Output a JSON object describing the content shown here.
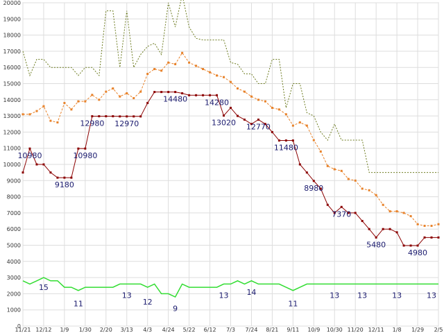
{
  "chart_data": {
    "type": "line",
    "ylim": [
      0,
      20000
    ],
    "yticks": [
      0,
      1000,
      2000,
      3000,
      4000,
      5000,
      6000,
      7000,
      8000,
      9000,
      10000,
      11000,
      12000,
      13000,
      14000,
      15000,
      16000,
      17000,
      18000,
      19000,
      20000
    ],
    "xlim": [
      0,
      90
    ],
    "xticks": [
      {
        "label": "11/21",
        "x": 0
      },
      {
        "label": "12/12",
        "x": 4.5
      },
      {
        "label": "1/9",
        "x": 9
      },
      {
        "label": "1/30",
        "x": 13.5
      },
      {
        "label": "2/20",
        "x": 18
      },
      {
        "label": "3/13",
        "x": 22.5
      },
      {
        "label": "4/3",
        "x": 27
      },
      {
        "label": "4/24",
        "x": 31.5
      },
      {
        "label": "5/22",
        "x": 36
      },
      {
        "label": "6/12",
        "x": 40.5
      },
      {
        "label": "7/3",
        "x": 45
      },
      {
        "label": "7/24",
        "x": 49.5
      },
      {
        "label": "8/21",
        "x": 54
      },
      {
        "label": "9/11",
        "x": 58.5
      },
      {
        "label": "10/9",
        "x": 63
      },
      {
        "label": "10/30",
        "x": 67.5
      },
      {
        "label": "11/20",
        "x": 72
      },
      {
        "label": "12/11",
        "x": 76.5
      },
      {
        "label": "1/8",
        "x": 81
      },
      {
        "label": "1/29",
        "x": 85.5
      },
      {
        "label": "2/5",
        "x": 90
      }
    ],
    "grid": true,
    "series": [
      {
        "color": "#8b0000",
        "style": "solid-square-markers",
        "x": [
          0,
          1.5,
          3,
          4.5,
          6,
          7.5,
          9,
          10.5,
          12,
          13.5,
          15,
          16.5,
          18,
          19.5,
          21,
          22.5,
          24,
          25.5,
          27,
          28.5,
          30,
          31.5,
          33,
          34.5,
          36,
          37.5,
          39,
          40.5,
          42,
          43.5,
          45,
          46.5,
          48,
          49.5,
          51,
          52.5,
          54,
          55.5,
          57,
          58.5,
          60,
          61.5,
          63,
          64.5,
          66,
          67.5,
          69,
          70.5,
          72,
          73.5,
          75,
          76.5,
          78,
          79.5,
          81,
          82.5,
          84,
          85.5,
          87,
          88.5,
          90
        ],
        "values": [
          9500,
          10980,
          10000,
          10000,
          9500,
          9180,
          9180,
          9180,
          10980,
          10980,
          12980,
          12980,
          12980,
          12980,
          12970,
          12970,
          12970,
          12970,
          13800,
          14480,
          14480,
          14480,
          14480,
          14400,
          14280,
          14280,
          14280,
          14280,
          14280,
          13020,
          13500,
          13000,
          12770,
          12500,
          12770,
          12500,
          12000,
          11480,
          11480,
          11480,
          10000,
          9500,
          8980,
          8500,
          7500,
          7000,
          7370,
          7000,
          7000,
          6500,
          6000,
          5480,
          6000,
          6000,
          5800,
          4980,
          4980,
          4980,
          5480,
          5480,
          5480
        ]
      },
      {
        "color": "#e8822a",
        "style": "dashed-square-markers",
        "x": [
          0,
          1.5,
          3,
          4.5,
          6,
          7.5,
          9,
          10.5,
          12,
          13.5,
          15,
          16.5,
          18,
          19.5,
          21,
          22.5,
          24,
          25.5,
          27,
          28.5,
          30,
          31.5,
          33,
          34.5,
          36,
          37.5,
          39,
          40.5,
          42,
          43.5,
          45,
          46.5,
          48,
          49.5,
          51,
          52.5,
          54,
          55.5,
          57,
          58.5,
          60,
          61.5,
          63,
          64.5,
          66,
          67.5,
          69,
          70.5,
          72,
          73.5,
          75,
          76.5,
          78,
          79.5,
          81,
          82.5,
          84,
          85.5,
          87,
          88.5,
          90
        ],
        "values": [
          13100,
          13100,
          13300,
          13600,
          12700,
          12600,
          13800,
          13400,
          13900,
          13900,
          14300,
          14000,
          14500,
          14700,
          14200,
          14400,
          14100,
          14500,
          15600,
          15900,
          15800,
          16300,
          16200,
          16900,
          16300,
          16100,
          15900,
          15700,
          15500,
          15400,
          15100,
          14700,
          14500,
          14200,
          14000,
          13900,
          13500,
          13400,
          13100,
          12400,
          12600,
          12400,
          11500,
          10800,
          9900,
          9700,
          9600,
          9100,
          9000,
          8500,
          8400,
          8100,
          7500,
          7100,
          7100,
          7000,
          6800,
          6300,
          6200,
          6200,
          6300
        ]
      },
      {
        "color": "#6b7a1e",
        "style": "dotted",
        "x": [
          0,
          1.5,
          3,
          4.5,
          6,
          7.5,
          9,
          10.5,
          12,
          13.5,
          15,
          16.5,
          18,
          19.5,
          21,
          22.5,
          24,
          25.5,
          27,
          28.5,
          30,
          31.5,
          33,
          34.5,
          36,
          37.5,
          39,
          40.5,
          42,
          43.5,
          45,
          46.5,
          48,
          49.5,
          51,
          52.5,
          54,
          55.5,
          57,
          58.5,
          60,
          61.5,
          63,
          64.5,
          66,
          67.5,
          69,
          70.5,
          72,
          73.5,
          75,
          76.5,
          78,
          79.5,
          81,
          82.5,
          84,
          85.5,
          87,
          88.5,
          90
        ],
        "values": [
          17000,
          15500,
          16500,
          16500,
          16000,
          16000,
          16000,
          16000,
          15500,
          16000,
          16000,
          15500,
          19500,
          19500,
          16000,
          19500,
          16000,
          16800,
          17300,
          17500,
          16800,
          20000,
          18500,
          20500,
          18500,
          17800,
          17700,
          17700,
          17700,
          17700,
          16300,
          16200,
          15600,
          15600,
          15000,
          15000,
          16500,
          16500,
          13500,
          15000,
          15000,
          13200,
          13000,
          12000,
          11500,
          12500,
          11500,
          11500,
          11500,
          11500,
          9500,
          9500,
          9500,
          9500,
          9500,
          9500,
          9500,
          9500,
          9500,
          9500,
          9500
        ]
      },
      {
        "color": "#33dd33",
        "style": "solid",
        "x": [
          0,
          1.5,
          3,
          4.5,
          6,
          7.5,
          9,
          10.5,
          12,
          13.5,
          15,
          16.5,
          18,
          19.5,
          21,
          22.5,
          24,
          25.5,
          27,
          28.5,
          30,
          31.5,
          33,
          34.5,
          36,
          37.5,
          39,
          40.5,
          42,
          43.5,
          45,
          46.5,
          48,
          49.5,
          51,
          52.5,
          54,
          55.5,
          57,
          58.5,
          60,
          61.5,
          63,
          64.5,
          66,
          67.5,
          69,
          70.5,
          72,
          73.5,
          75,
          76.5,
          78,
          79.5,
          81,
          82.5,
          84,
          85.5,
          87,
          88.5,
          90
        ],
        "values": [
          2800,
          2600,
          2800,
          3000,
          2800,
          2800,
          2400,
          2400,
          2200,
          2400,
          2400,
          2400,
          2400,
          2400,
          2600,
          2600,
          2600,
          2600,
          2400,
          2600,
          2000,
          2000,
          1800,
          2600,
          2400,
          2400,
          2400,
          2400,
          2400,
          2600,
          2600,
          2800,
          2600,
          2800,
          2600,
          2600,
          2600,
          2600,
          2400,
          2200,
          2400,
          2600,
          2600,
          2600,
          2600,
          2600,
          2600,
          2600,
          2600,
          2600,
          2600,
          2600,
          2600,
          2600,
          2600,
          2600,
          2600,
          2600,
          2600,
          2600,
          2600
        ]
      }
    ],
    "annotations_high": [
      {
        "text": "10980",
        "x": 1.5,
        "y": 10980
      },
      {
        "text": "9180",
        "x": 9,
        "y": 9180
      },
      {
        "text": "10980",
        "x": 13.5,
        "y": 10980
      },
      {
        "text": "12980",
        "x": 15,
        "y": 12980
      },
      {
        "text": "12970",
        "x": 22.5,
        "y": 12970
      },
      {
        "text": "14480",
        "x": 33,
        "y": 14480
      },
      {
        "text": "14280",
        "x": 42,
        "y": 14280
      },
      {
        "text": "13020",
        "x": 43.5,
        "y": 13020
      },
      {
        "text": "12770",
        "x": 51,
        "y": 12770
      },
      {
        "text": "11480",
        "x": 57,
        "y": 11480
      },
      {
        "text": "8980",
        "x": 63,
        "y": 8980
      },
      {
        "text": "7370",
        "x": 69,
        "y": 7370
      },
      {
        "text": "5480",
        "x": 76.5,
        "y": 5480
      },
      {
        "text": "4980",
        "x": 85.5,
        "y": 4980
      }
    ],
    "annotations_low": [
      {
        "text": "15",
        "x": 4.5,
        "y": 2400
      },
      {
        "text": "11",
        "x": 12,
        "y": 1400
      },
      {
        "text": "13",
        "x": 22.5,
        "y": 1900
      },
      {
        "text": "12",
        "x": 27,
        "y": 1500
      },
      {
        "text": "9",
        "x": 33,
        "y": 1100
      },
      {
        "text": "13",
        "x": 43.5,
        "y": 1900
      },
      {
        "text": "14",
        "x": 49.5,
        "y": 2100
      },
      {
        "text": "11",
        "x": 58.5,
        "y": 1400
      },
      {
        "text": "13",
        "x": 67.5,
        "y": 1900
      },
      {
        "text": "13",
        "x": 73.5,
        "y": 1900
      },
      {
        "text": "13",
        "x": 81,
        "y": 1900
      },
      {
        "text": "13",
        "x": 88.5,
        "y": 1900
      }
    ]
  }
}
